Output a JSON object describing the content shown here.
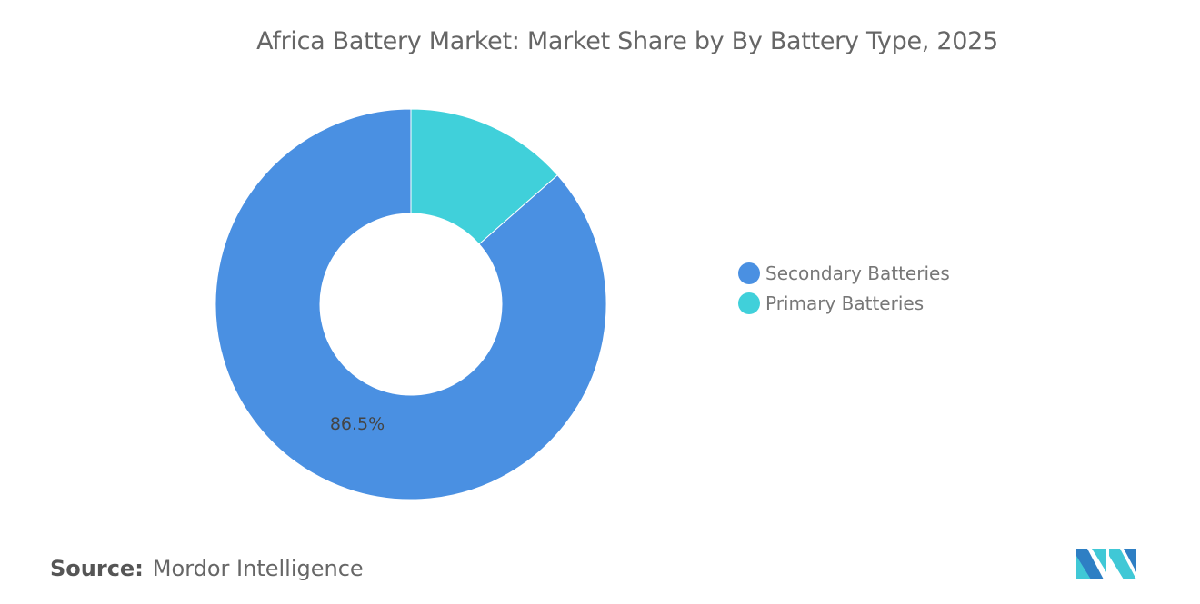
{
  "title": "Africa Battery Market: Market Share by By Battery Type, 2025",
  "chart_data": {
    "type": "pie",
    "donut": true,
    "title": "Africa Battery Market: Market Share by By Battery Type, 2025",
    "categories": [
      "Secondary Batteries",
      "Primary Batteries"
    ],
    "values": [
      86.5,
      13.5
    ],
    "colors": [
      "#4A90E2",
      "#40D0DA"
    ],
    "data_labels": [
      "86.5%",
      ""
    ],
    "legend_position": "right"
  },
  "source": {
    "label": "Source:",
    "value": "Mordor Intelligence"
  },
  "logo_icon": "mordor-intelligence-logo"
}
